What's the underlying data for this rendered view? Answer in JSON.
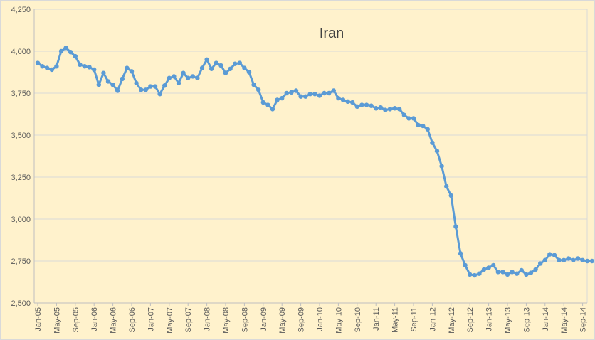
{
  "chart_data": {
    "type": "line",
    "title": "Iran",
    "xlabel": "",
    "ylabel": "",
    "ylim": [
      2500,
      4250
    ],
    "yticks": [
      "2,500",
      "2,750",
      "3,000",
      "3,250",
      "3,500",
      "3,750",
      "4,000",
      "4,250"
    ],
    "ytick_values": [
      2500,
      2750,
      3000,
      3250,
      3500,
      3750,
      4000,
      4250
    ],
    "xtick_labels": [
      "Jan-05",
      "May-05",
      "Sep-05",
      "Jan-06",
      "May-06",
      "Sep-06",
      "Jan-07",
      "May-07",
      "Sep-07",
      "Jan-08",
      "May-08",
      "Sep-08",
      "Jan-09",
      "May-09",
      "Sep-09",
      "Jan-10",
      "May-10",
      "Sep-10",
      "Jan-11",
      "May-11",
      "Sep-11",
      "Jan-12",
      "May-12",
      "Sep-12",
      "Jan-13",
      "May-13",
      "Sep-13",
      "Jan-14",
      "May-14",
      "Sep-14"
    ],
    "grid": true,
    "legend": "none",
    "start_month": "Jan-05",
    "series": [
      {
        "color": "#5b9bd5",
        "values": [
          3930,
          3910,
          3900,
          3890,
          3910,
          4000,
          4020,
          3995,
          3970,
          3920,
          3910,
          3905,
          3890,
          3800,
          3870,
          3820,
          3800,
          3765,
          3835,
          3900,
          3880,
          3810,
          3770,
          3770,
          3790,
          3790,
          3745,
          3795,
          3840,
          3850,
          3810,
          3870,
          3840,
          3850,
          3840,
          3900,
          3950,
          3895,
          3930,
          3915,
          3870,
          3895,
          3925,
          3930,
          3900,
          3875,
          3800,
          3770,
          3695,
          3680,
          3655,
          3710,
          3720,
          3750,
          3755,
          3765,
          3730,
          3730,
          3745,
          3745,
          3735,
          3750,
          3750,
          3765,
          3720,
          3710,
          3700,
          3695,
          3670,
          3680,
          3680,
          3675,
          3660,
          3665,
          3650,
          3655,
          3660,
          3655,
          3620,
          3600,
          3600,
          3560,
          3555,
          3535,
          3455,
          3405,
          3315,
          3195,
          3140,
          2955,
          2795,
          2725,
          2670,
          2665,
          2675,
          2700,
          2710,
          2725,
          2685,
          2685,
          2670,
          2685,
          2675,
          2695,
          2670,
          2680,
          2700,
          2735,
          2755,
          2790,
          2785,
          2755,
          2755,
          2765,
          2755,
          2765,
          2755,
          2750,
          2750
        ]
      }
    ]
  }
}
